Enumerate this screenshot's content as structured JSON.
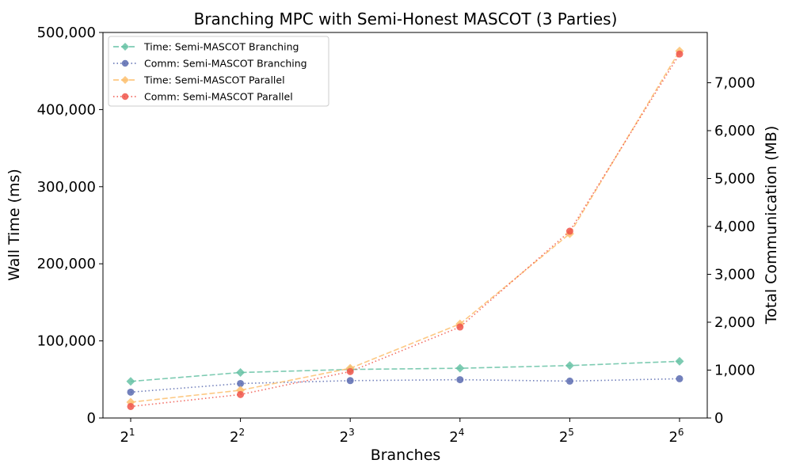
{
  "chart_data": {
    "type": "line",
    "title": "Branching MPC with Semi-Honest MASCOT (3 Parties)",
    "xlabel": "Branches",
    "ylabel_left": "Wall Time (ms)",
    "ylabel_right": "Total Communication (MB)",
    "x_base": "2",
    "x_exponents": [
      "1",
      "2",
      "3",
      "4",
      "5",
      "6"
    ],
    "x": [
      2,
      4,
      8,
      16,
      32,
      64
    ],
    "x_scale": "log2",
    "ylim_left": [
      0,
      500000
    ],
    "yticks_left": [
      0,
      100000,
      200000,
      300000,
      400000,
      500000
    ],
    "ytick_labels_left": [
      "0",
      "100,000",
      "200,000",
      "300,000",
      "400,000",
      "500,000"
    ],
    "ylim_right": [
      0,
      8050
    ],
    "yticks_right": [
      0,
      1000,
      2000,
      3000,
      4000,
      5000,
      6000,
      7000
    ],
    "ytick_labels_right": [
      "0",
      "1,000",
      "2,000",
      "3,000",
      "4,000",
      "5,000",
      "6,000",
      "7,000"
    ],
    "legend_position": "top-left",
    "grid": false,
    "series": [
      {
        "name": "Time: Semi-MASCOT Branching",
        "axis": "left",
        "color": "#66c2a5",
        "marker": "diamond",
        "line": "dashed",
        "values": [
          47500,
          59000,
          63000,
          64500,
          68000,
          73500
        ]
      },
      {
        "name": "Comm: Semi-MASCOT Branching",
        "axis": "right",
        "color": "#5a6bb0",
        "marker": "circle",
        "line": "dotted",
        "values": [
          540,
          720,
          780,
          800,
          770,
          820
        ]
      },
      {
        "name": "Time: Semi-MASCOT Parallel",
        "axis": "left",
        "color": "#fdbf6f",
        "marker": "diamond",
        "line": "dashed",
        "values": [
          20500,
          36000,
          64500,
          122000,
          239000,
          476000
        ]
      },
      {
        "name": "Comm: Semi-MASCOT Parallel",
        "axis": "right",
        "color": "#f0554a",
        "marker": "circle",
        "line": "dotted",
        "values": [
          240,
          490,
          970,
          1900,
          3900,
          7600
        ]
      }
    ]
  }
}
